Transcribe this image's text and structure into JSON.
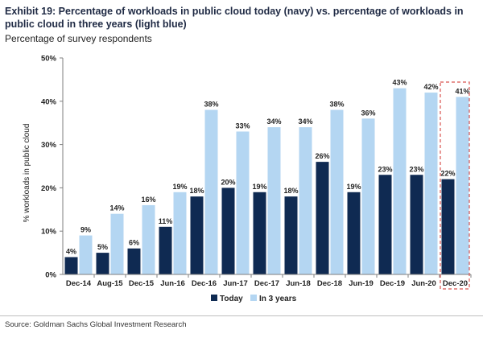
{
  "title": "Exhibit 19: Percentage of workloads in public cloud today (navy) vs. percentage of workloads in public cloud in three years (light blue)",
  "subtitle": "Percentage of survey respondents",
  "source": "Source: Goldman Sachs Global Investment Research",
  "colors": {
    "today": "#0f2a52",
    "three_years": "#b4d6f2",
    "highlight": "#d9534f"
  },
  "chart_data": {
    "type": "bar",
    "ylabel": "% workloads in public cloud",
    "ylim": [
      0,
      50
    ],
    "yticks": [
      "0%",
      "10%",
      "20%",
      "30%",
      "40%",
      "50%"
    ],
    "ytick_values": [
      0,
      10,
      20,
      30,
      40,
      50
    ],
    "categories": [
      "Dec-14",
      "Aug-15",
      "Dec-15",
      "Jun-16",
      "Dec-16",
      "Jun-17",
      "Dec-17",
      "Jun-18",
      "Dec-18",
      "Jun-19",
      "Dec-19",
      "Jun-20",
      "Dec-20"
    ],
    "series": [
      {
        "name": "Today",
        "values": [
          4,
          5,
          6,
          11,
          18,
          20,
          19,
          18,
          26,
          19,
          23,
          23,
          22
        ],
        "labels": [
          "4%",
          "5%",
          "6%",
          "11%",
          "18%",
          "20%",
          "19%",
          "18%",
          "26%",
          "19%",
          "23%",
          "23%",
          "22%"
        ]
      },
      {
        "name": "In 3 years",
        "values": [
          9,
          14,
          16,
          19,
          38,
          33,
          34,
          34,
          38,
          36,
          43,
          42,
          41
        ],
        "labels": [
          "9%",
          "14%",
          "16%",
          "19%",
          "38%",
          "33%",
          "34%",
          "34%",
          "38%",
          "36%",
          "43%",
          "42%",
          "41%"
        ]
      }
    ],
    "highlight_category": "Dec-20",
    "grid": false,
    "legend": "bottom-center"
  }
}
